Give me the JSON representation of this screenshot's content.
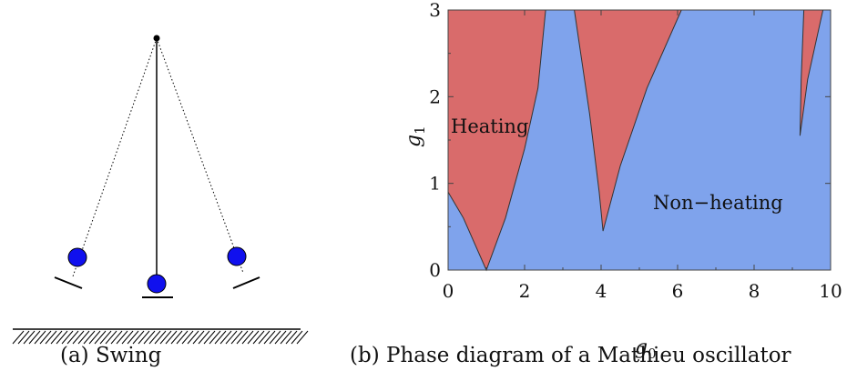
{
  "figure_a": {
    "caption": "(a) Swing"
  },
  "figure_b": {
    "caption": "(b) Phase diagram of a Mathieu oscillator",
    "chart_data": {
      "type": "heatmap",
      "xlabel_base": "g",
      "xlabel_sub": "0",
      "ylabel_base": "g",
      "ylabel_sub": "1",
      "xlim": [
        0,
        10
      ],
      "ylim": [
        0,
        3
      ],
      "x_ticks": [
        "0",
        "2",
        "4",
        "6",
        "8",
        "10"
      ],
      "y_ticks": [
        "0",
        "1",
        "2",
        "3"
      ],
      "regions": [
        {
          "label": "Heating",
          "color": "#d96b6b",
          "tongues": [
            {
              "left": [
                [
                  0,
                  0.9
                ],
                [
                  0.4,
                  0.6
                ],
                [
                  0.7,
                  0.3
                ],
                [
                  1.0,
                  0.0
                ]
              ],
              "right": [
                [
                  1.0,
                  0.0
                ],
                [
                  1.5,
                  0.6
                ],
                [
                  2.0,
                  1.4
                ],
                [
                  2.35,
                  2.1
                ],
                [
                  2.55,
                  3.0
                ]
              ],
              "top_left_x": 0
            },
            {
              "left": [
                [
                  3.3,
                  3.0
                ],
                [
                  3.7,
                  1.8
                ],
                [
                  3.95,
                  0.9
                ],
                [
                  4.05,
                  0.45
                ]
              ],
              "right": [
                [
                  4.05,
                  0.45
                ],
                [
                  4.5,
                  1.2
                ],
                [
                  5.2,
                  2.1
                ],
                [
                  6.1,
                  3.0
                ]
              ]
            },
            {
              "left": [
                [
                  9.2,
                  1.55
                ],
                [
                  9.23,
                  2.2
                ],
                [
                  9.3,
                  3.0
                ]
              ],
              "right": [
                [
                  9.2,
                  1.55
                ],
                [
                  9.4,
                  2.2
                ],
                [
                  9.8,
                  3.0
                ]
              ]
            }
          ]
        },
        {
          "label": "Non−heating",
          "color": "#7fa3ec"
        }
      ],
      "annotations": [
        "Heating",
        "Non−heating"
      ]
    }
  }
}
